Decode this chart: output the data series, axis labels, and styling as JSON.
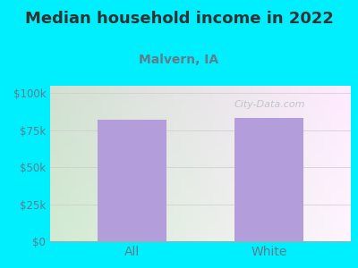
{
  "title": "Median household income in 2022",
  "subtitle": "Malvern, IA",
  "categories": [
    "All",
    "White"
  ],
  "values": [
    82000,
    83000
  ],
  "bar_color": "#b39ddb",
  "background_color": "#00efff",
  "plot_bg_topleft": "#e8f5e8",
  "plot_bg_topright": "#f8f8f5",
  "plot_bg_bottomleft": "#d0eed0",
  "plot_bg_bottomright": "#f0f0ec",
  "title_fontsize": 13,
  "subtitle_fontsize": 10,
  "yticks": [
    0,
    25000,
    50000,
    75000,
    100000
  ],
  "ytick_labels": [
    "$0",
    "$25k",
    "$50k",
    "$75k",
    "$100k"
  ],
  "ylim": [
    0,
    105000
  ],
  "tick_color": "#607d8b",
  "watermark": "City-Data.com",
  "xlabel_fontsize": 10,
  "bar_width": 0.5
}
